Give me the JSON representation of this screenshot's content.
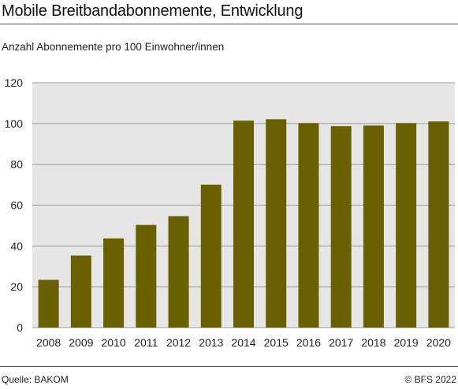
{
  "header": {
    "title": "Mobile Breitbandabonnemente, Entwicklung",
    "subtitle": "Anzahl Abonnemente pro 100 Einwohner/innen"
  },
  "footer": {
    "source": "Quelle: BAKOM",
    "copyright": "© BFS 2022"
  },
  "colors": {
    "bar": "#6b6000",
    "plot_background": "#e6e6e6",
    "grid": "#9a9a9a"
  },
  "chart_data": {
    "type": "bar",
    "title": "Mobile Breitbandabonnemente, Entwicklung",
    "ylabel": "Anzahl Abonnemente pro 100 Einwohner/innen",
    "xlabel": "",
    "categories": [
      "2008",
      "2009",
      "2010",
      "2011",
      "2012",
      "2013",
      "2014",
      "2015",
      "2016",
      "2017",
      "2018",
      "2019",
      "2020"
    ],
    "values": [
      23.4,
      35.3,
      43.7,
      50.3,
      54.6,
      70.0,
      101.4,
      102.1,
      100.2,
      98.7,
      99.0,
      100.2,
      101.0
    ],
    "ylim": [
      0,
      120
    ],
    "yticks": [
      0,
      20,
      40,
      60,
      80,
      100,
      120
    ],
    "grid": true,
    "legend": "none"
  }
}
